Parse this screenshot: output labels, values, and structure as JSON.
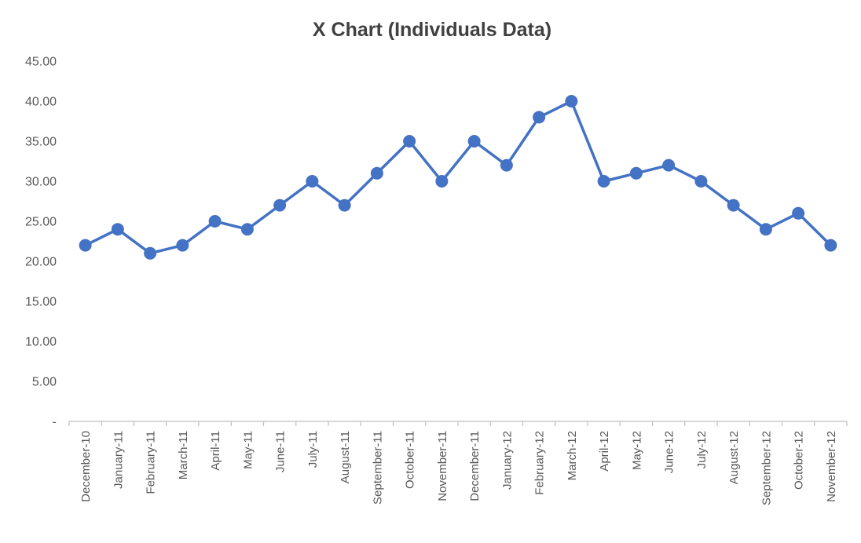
{
  "chart_data": {
    "type": "line",
    "title": "X Chart (Individuals Data)",
    "categories": [
      "December-10",
      "January-11",
      "February-11",
      "March-11",
      "April-11",
      "May-11",
      "June-11",
      "July-11",
      "August-11",
      "September-11",
      "October-11",
      "November-11",
      "December-11",
      "January-12",
      "February-12",
      "March-12",
      "April-12",
      "May-12",
      "June-12",
      "July-12",
      "August-12",
      "September-12",
      "October-12",
      "November-12"
    ],
    "values": [
      22,
      24,
      21,
      22,
      25,
      24,
      27,
      30,
      27,
      31,
      35,
      30,
      35,
      32,
      38,
      40,
      30,
      31,
      32,
      30,
      27,
      24,
      26,
      22
    ],
    "xlabel": "",
    "ylabel": "",
    "ylim": [
      0,
      45
    ],
    "ytick_values": [
      0,
      5,
      10,
      15,
      20,
      25,
      30,
      35,
      40,
      45
    ],
    "ytick_labels": [
      "-",
      "5.00",
      "10.00",
      "15.00",
      "20.00",
      "25.00",
      "30.00",
      "35.00",
      "40.00",
      "45.00"
    ],
    "grid": false,
    "legend_position": "none",
    "series_color": "#4472C4",
    "axis_color": "#BFBFBF",
    "tick_text_color": "#595959",
    "title_color": "#404040",
    "marker": "circle"
  }
}
